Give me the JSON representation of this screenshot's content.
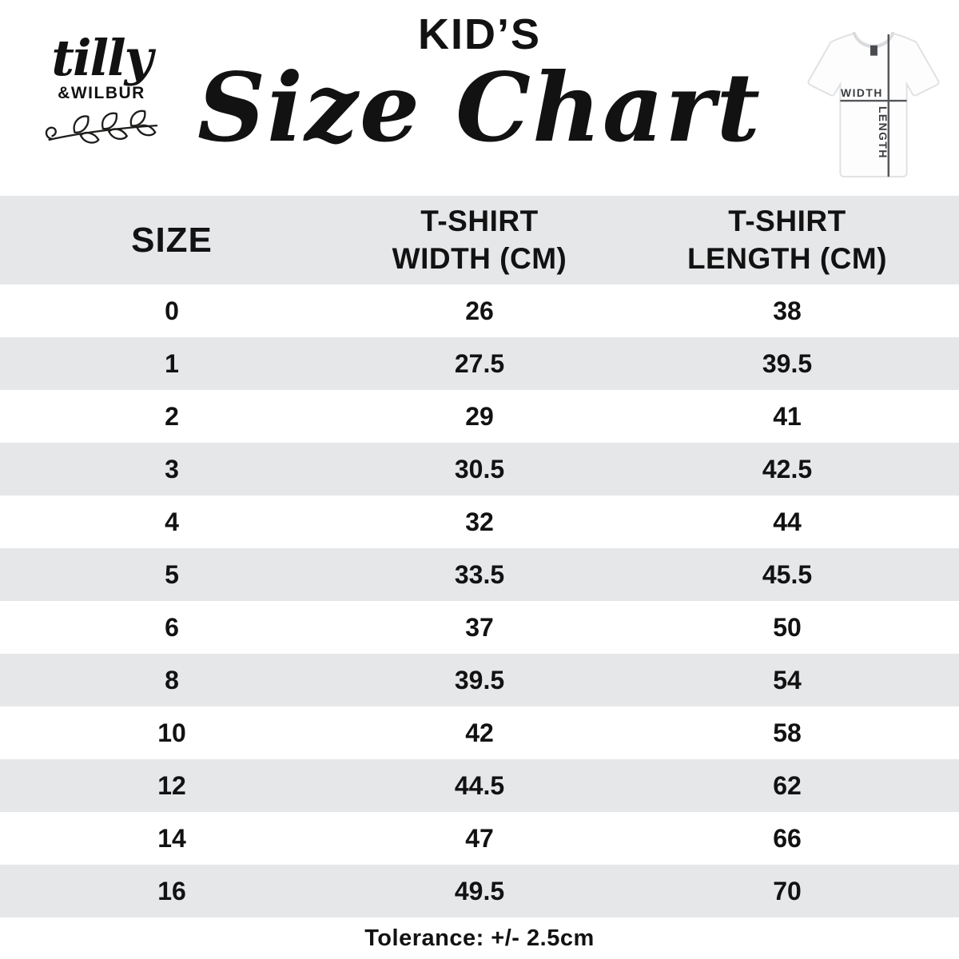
{
  "brand": {
    "script_name": "tilly",
    "caps_name": "&WILBUR"
  },
  "title": {
    "kicker": "KID’S",
    "main": "Size Chart"
  },
  "diagram": {
    "width_label": "WIDTH",
    "length_label": "LENGTH"
  },
  "table": {
    "headers": {
      "size": "SIZE",
      "width": [
        "T-SHIRT",
        "WIDTH (CM)"
      ],
      "length": [
        "T-SHIRT",
        "LENGTH (CM)"
      ]
    },
    "rows": [
      {
        "size": "0",
        "width": "26",
        "length": "38"
      },
      {
        "size": "1",
        "width": "27.5",
        "length": "39.5"
      },
      {
        "size": "2",
        "width": "29",
        "length": "41"
      },
      {
        "size": "3",
        "width": "30.5",
        "length": "42.5"
      },
      {
        "size": "4",
        "width": "32",
        "length": "44"
      },
      {
        "size": "5",
        "width": "33.5",
        "length": "45.5"
      },
      {
        "size": "6",
        "width": "37",
        "length": "50"
      },
      {
        "size": "8",
        "width": "39.5",
        "length": "54"
      },
      {
        "size": "10",
        "width": "42",
        "length": "58"
      },
      {
        "size": "12",
        "width": "44.5",
        "length": "62"
      },
      {
        "size": "14",
        "width": "47",
        "length": "66"
      },
      {
        "size": "16",
        "width": "49.5",
        "length": "70"
      }
    ],
    "tolerance": "Tolerance: +/- 2.5cm"
  },
  "colors": {
    "row_alt": "#e6e7e9",
    "text": "#121212",
    "diagram_line": "#55565a"
  },
  "chart_data": {
    "type": "table",
    "title": "KID'S Size Chart",
    "columns": [
      "SIZE",
      "T-SHIRT WIDTH (CM)",
      "T-SHIRT LENGTH (CM)"
    ],
    "categories": [
      "0",
      "1",
      "2",
      "3",
      "4",
      "5",
      "6",
      "8",
      "10",
      "12",
      "14",
      "16"
    ],
    "series": [
      {
        "name": "T-SHIRT WIDTH (CM)",
        "values": [
          26,
          27.5,
          29,
          30.5,
          32,
          33.5,
          37,
          39.5,
          42,
          44.5,
          47,
          49.5
        ]
      },
      {
        "name": "T-SHIRT LENGTH (CM)",
        "values": [
          38,
          39.5,
          41,
          42.5,
          44,
          45.5,
          50,
          54,
          58,
          62,
          66,
          70
        ]
      }
    ],
    "annotations": [
      "Tolerance: +/- 2.5cm"
    ]
  }
}
